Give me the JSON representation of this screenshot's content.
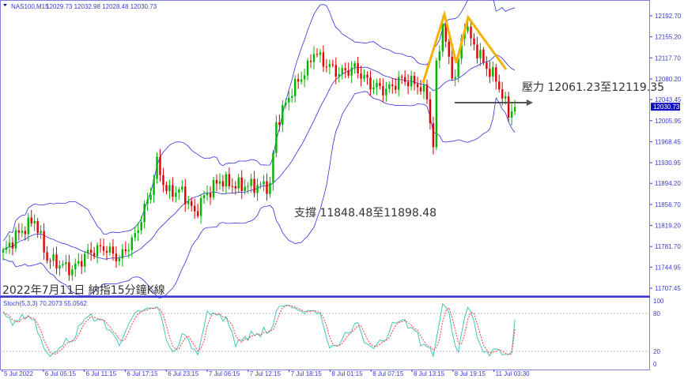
{
  "header": {
    "symbol": "NAS100,M15",
    "ohlc": "12029.73 12032.98 12028.48 12030.73"
  },
  "chart_title": "2022年7月11日 納指15分鐘K線",
  "annotations": {
    "resistance": "壓力 12061.23至12119.35",
    "support": "支撐 11848.48至11898.48"
  },
  "colors": {
    "up": "#00b400",
    "down": "#e00000",
    "bands": "#3030e0",
    "stoch_main": "#40c8b8",
    "stoch_signal": "#ff4040",
    "pattern": "#f5b300",
    "arrow": "#555555",
    "axis": "#3a3ad0"
  },
  "chart_data": {
    "type": "candlestick",
    "indicators": [
      "Bollinger Bands",
      "Stochastic(5,3,3)"
    ],
    "price_ticks": [
      "12192.70",
      "12155.20",
      "12117.70",
      "12080.20",
      "12043.45",
      "12005.95",
      "11968.45",
      "11930.95",
      "11894.20",
      "11856.70",
      "11819.20",
      "11781.70",
      "11744.95",
      "11707.45"
    ],
    "current_price": "12030.73",
    "ylim": [
      11707.45,
      12192.7
    ],
    "time_ticks": [
      "5 Jul 2022",
      "6 Jul 05:15",
      "6 Jul 11:15",
      "6 Jul 17:15",
      "6 Jul 23:15",
      "7 Jul 06:15",
      "7 Jul 12:15",
      "7 Jul 18:15",
      "8 Jul 01:15",
      "8 Jul 07:15",
      "8 Jul 13:15",
      "8 Jul 19:15",
      "11 Jul 03:30"
    ],
    "close_path": [
      [
        0,
        11770
      ],
      [
        4,
        11800
      ],
      [
        10,
        11830
      ],
      [
        14,
        11760
      ],
      [
        22,
        11740
      ],
      [
        27,
        11770
      ],
      [
        32,
        11780
      ],
      [
        37,
        11760
      ],
      [
        42,
        11800
      ],
      [
        47,
        11880
      ],
      [
        49,
        11930
      ],
      [
        52,
        11880
      ],
      [
        57,
        11880
      ],
      [
        61,
        11840
      ],
      [
        64,
        11870
      ],
      [
        69,
        11900
      ],
      [
        74,
        11890
      ],
      [
        79,
        11890
      ],
      [
        85,
        11890
      ],
      [
        87,
        12000
      ],
      [
        92,
        12060
      ],
      [
        97,
        12100
      ],
      [
        99,
        12130
      ],
      [
        102,
        12110
      ],
      [
        107,
        12090
      ],
      [
        112,
        12100
      ],
      [
        117,
        12070
      ],
      [
        122,
        12060
      ],
      [
        127,
        12080
      ],
      [
        132,
        12070
      ],
      [
        135,
        12050
      ],
      [
        137,
        11960
      ],
      [
        138,
        12100
      ],
      [
        140,
        12180
      ],
      [
        142,
        12110
      ],
      [
        144,
        12080
      ],
      [
        147,
        12180
      ],
      [
        149,
        12150
      ],
      [
        152,
        12120
      ],
      [
        154,
        12100
      ],
      [
        157,
        12080
      ],
      [
        159,
        12050
      ],
      [
        161,
        12020
      ],
      [
        163,
        12030
      ]
    ],
    "stoch": {
      "label": "Stoch(5,3,3) 70.2073 55.0562",
      "levels": [
        "100",
        "80",
        "20",
        "0"
      ],
      "main_last": 70.2073,
      "signal_last": 55.0562
    }
  }
}
